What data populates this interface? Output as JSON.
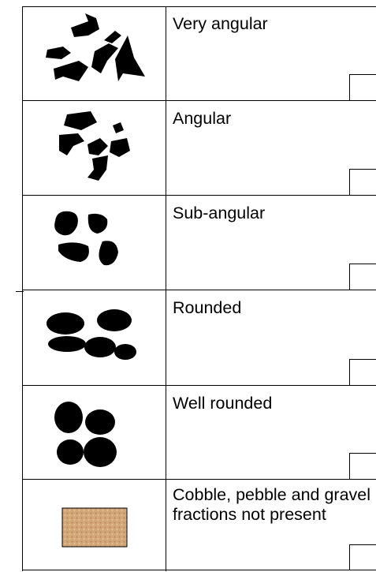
{
  "rows": [
    {
      "label": "Very angular"
    },
    {
      "label": "Angular"
    },
    {
      "label": "Sub-angular"
    },
    {
      "label": "Rounded"
    },
    {
      "label": "Well rounded"
    },
    {
      "label": "Cobble, pebble and gravel fractions not present"
    }
  ]
}
